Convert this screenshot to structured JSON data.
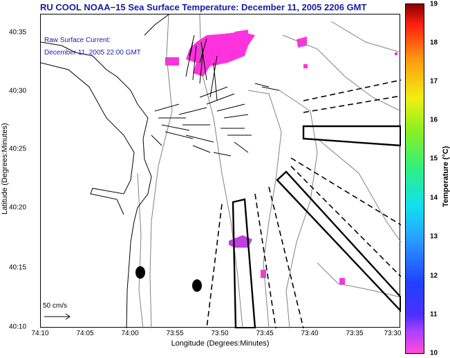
{
  "title": "RU COOL  NOAA−15  Sea Surface Temperature:  December 11, 2005 2206 GMT",
  "current_label": "Raw Surface Current:",
  "current_time": "December 11, 2005 22:00 GMT",
  "scale_label": "50 cm/s",
  "xlabel": "Longitude (Degrees:Minutes)",
  "ylabel": "Latitude (Degrees:Minutes)",
  "x_ticks": [
    "74:10",
    "74:05",
    "74:00",
    "73:55",
    "73:50",
    "73:45",
    "73:40",
    "73:35",
    "73:30"
  ],
  "y_ticks": [
    "40:35",
    "40:30",
    "40:25",
    "40:20",
    "40:15",
    "40:10"
  ],
  "colorbar": {
    "label": "Temperature (°C)",
    "ticks": [
      "19",
      "18",
      "17",
      "16",
      "15",
      "14",
      "13",
      "12",
      "11",
      "10"
    ],
    "min": 10,
    "max": 19
  },
  "colors": {
    "title": "#1a1aa8",
    "sst_patch": "#ff33dd",
    "contour": "#808080"
  }
}
